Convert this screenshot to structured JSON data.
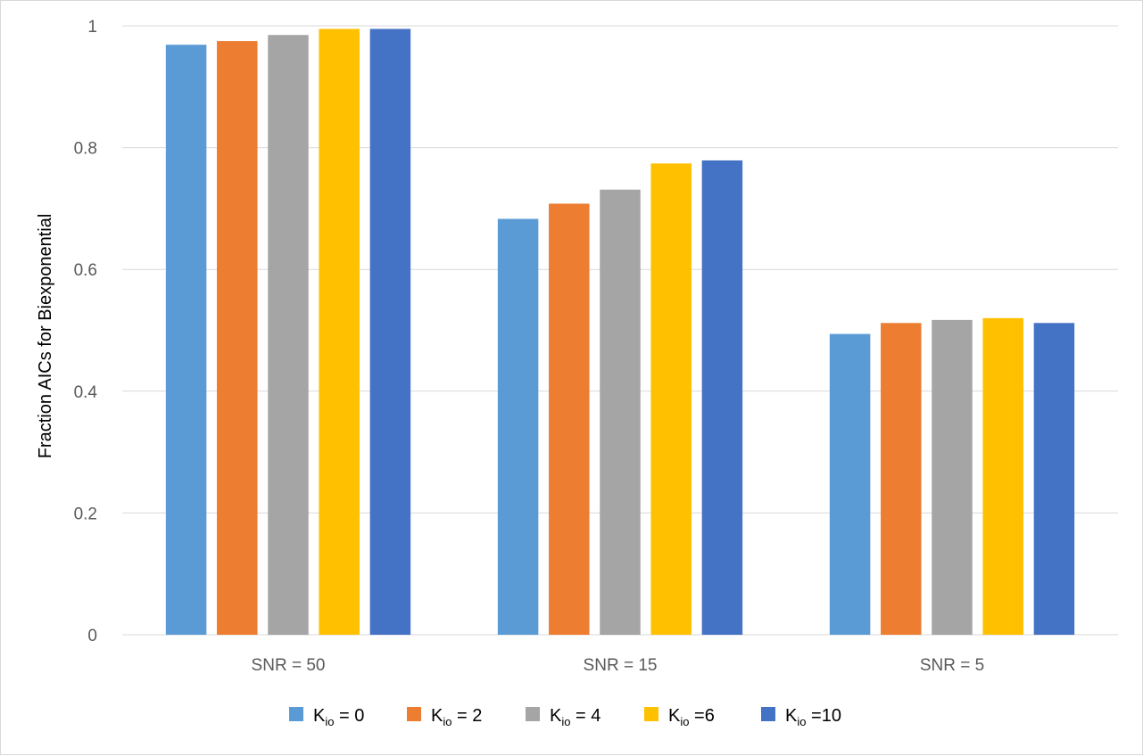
{
  "chart_data": {
    "type": "bar",
    "title": "",
    "xlabel": "",
    "ylabel": "Fraction AICs for Biexponential",
    "categories": [
      "SNR = 50",
      "SNR = 15",
      "SNR = 5"
    ],
    "ylim": [
      0,
      1
    ],
    "yticks": [
      0,
      0.2,
      0.4,
      0.6,
      0.8,
      1
    ],
    "ytick_labels": [
      "0",
      "0.2",
      "0.4",
      "0.6",
      "0.8",
      "1"
    ],
    "grid": true,
    "legend_position": "bottom",
    "series": [
      {
        "name": "Kio = 0",
        "legend_main": "K",
        "legend_sub": "io",
        "legend_suffix": " = 0",
        "color": "#5B9BD5",
        "values": [
          0.969,
          0.683,
          0.494
        ]
      },
      {
        "name": "Kio = 2",
        "legend_main": "K",
        "legend_sub": "io",
        "legend_suffix": " = 2",
        "color": "#ED7D31",
        "values": [
          0.975,
          0.708,
          0.512
        ]
      },
      {
        "name": "Kio = 4",
        "legend_main": "K",
        "legend_sub": "io",
        "legend_suffix": " = 4",
        "color": "#A5A5A5",
        "values": [
          0.985,
          0.731,
          0.517
        ]
      },
      {
        "name": "Kio =6",
        "legend_main": "K",
        "legend_sub": "io",
        "legend_suffix": " =6",
        "color": "#FFC000",
        "values": [
          0.995,
          0.774,
          0.52
        ]
      },
      {
        "name": "Kio =10",
        "legend_main": "K",
        "legend_sub": "io",
        "legend_suffix": " =10",
        "color": "#4472C4",
        "values": [
          0.995,
          0.779,
          0.512
        ]
      }
    ]
  }
}
